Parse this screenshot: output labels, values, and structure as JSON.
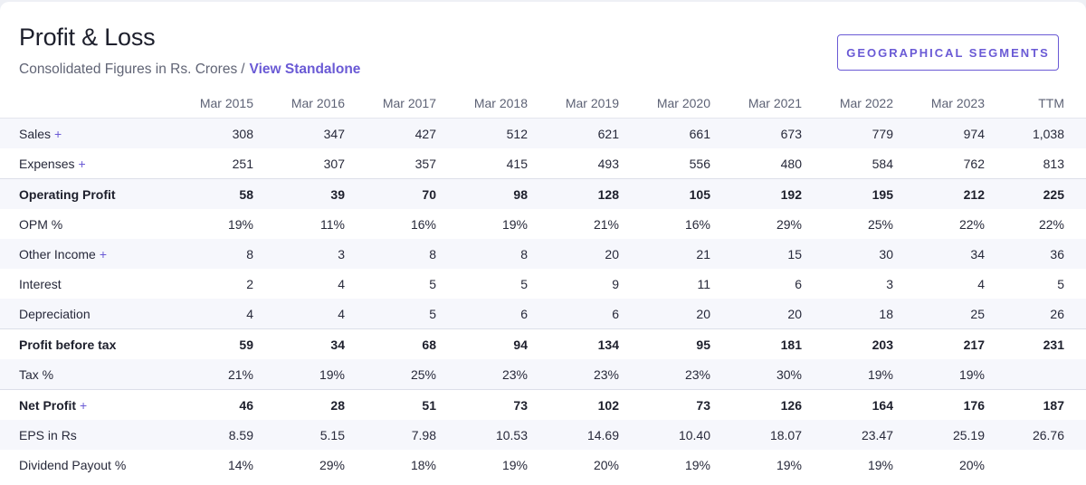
{
  "header": {
    "title": "Profit & Loss",
    "subtitle_prefix": "Consolidated Figures in Rs. Crores",
    "subtitle_separator": "/",
    "subtitle_link": "View Standalone",
    "segments_button": "GEOGRAPHICAL SEGMENTS"
  },
  "table": {
    "columns": [
      "Mar 2015",
      "Mar 2016",
      "Mar 2017",
      "Mar 2018",
      "Mar 2019",
      "Mar 2020",
      "Mar 2021",
      "Mar 2022",
      "Mar 2023",
      "TTM"
    ],
    "rows": [
      {
        "label": "Sales",
        "expandable": true,
        "bold": false,
        "shade": true,
        "divider": false,
        "values": [
          "308",
          "347",
          "427",
          "512",
          "621",
          "661",
          "673",
          "779",
          "974",
          "1,038"
        ]
      },
      {
        "label": "Expenses",
        "expandable": true,
        "bold": false,
        "shade": false,
        "divider": false,
        "values": [
          "251",
          "307",
          "357",
          "415",
          "493",
          "556",
          "480",
          "584",
          "762",
          "813"
        ]
      },
      {
        "label": "Operating Profit",
        "expandable": false,
        "bold": true,
        "shade": true,
        "divider": true,
        "values": [
          "58",
          "39",
          "70",
          "98",
          "128",
          "105",
          "192",
          "195",
          "212",
          "225"
        ]
      },
      {
        "label": "OPM %",
        "expandable": false,
        "bold": false,
        "shade": false,
        "divider": false,
        "values": [
          "19%",
          "11%",
          "16%",
          "19%",
          "21%",
          "16%",
          "29%",
          "25%",
          "22%",
          "22%"
        ]
      },
      {
        "label": "Other Income",
        "expandable": true,
        "bold": false,
        "shade": true,
        "divider": false,
        "values": [
          "8",
          "3",
          "8",
          "8",
          "20",
          "21",
          "15",
          "30",
          "34",
          "36"
        ]
      },
      {
        "label": "Interest",
        "expandable": false,
        "bold": false,
        "shade": false,
        "divider": false,
        "values": [
          "2",
          "4",
          "5",
          "5",
          "9",
          "11",
          "6",
          "3",
          "4",
          "5"
        ]
      },
      {
        "label": "Depreciation",
        "expandable": false,
        "bold": false,
        "shade": true,
        "divider": false,
        "values": [
          "4",
          "4",
          "5",
          "6",
          "6",
          "20",
          "20",
          "18",
          "25",
          "26"
        ]
      },
      {
        "label": "Profit before tax",
        "expandable": false,
        "bold": true,
        "shade": false,
        "divider": true,
        "values": [
          "59",
          "34",
          "68",
          "94",
          "134",
          "95",
          "181",
          "203",
          "217",
          "231"
        ]
      },
      {
        "label": "Tax %",
        "expandable": false,
        "bold": false,
        "shade": true,
        "divider": false,
        "values": [
          "21%",
          "19%",
          "25%",
          "23%",
          "23%",
          "23%",
          "30%",
          "19%",
          "19%",
          ""
        ]
      },
      {
        "label": "Net Profit",
        "expandable": true,
        "bold": true,
        "shade": false,
        "divider": true,
        "values": [
          "46",
          "28",
          "51",
          "73",
          "102",
          "73",
          "126",
          "164",
          "176",
          "187"
        ]
      },
      {
        "label": "EPS in Rs",
        "expandable": false,
        "bold": false,
        "shade": true,
        "divider": false,
        "values": [
          "8.59",
          "5.15",
          "7.98",
          "10.53",
          "14.69",
          "10.40",
          "18.07",
          "23.47",
          "25.19",
          "26.76"
        ]
      },
      {
        "label": "Dividend Payout %",
        "expandable": false,
        "bold": false,
        "shade": false,
        "divider": false,
        "values": [
          "14%",
          "29%",
          "18%",
          "19%",
          "20%",
          "19%",
          "19%",
          "19%",
          "20%",
          ""
        ]
      }
    ],
    "expand_symbol": "+"
  },
  "colors": {
    "accent": "#6a5ad5",
    "row_shade": "#f6f7fc",
    "text": "#27293a",
    "muted": "#5d6275"
  }
}
